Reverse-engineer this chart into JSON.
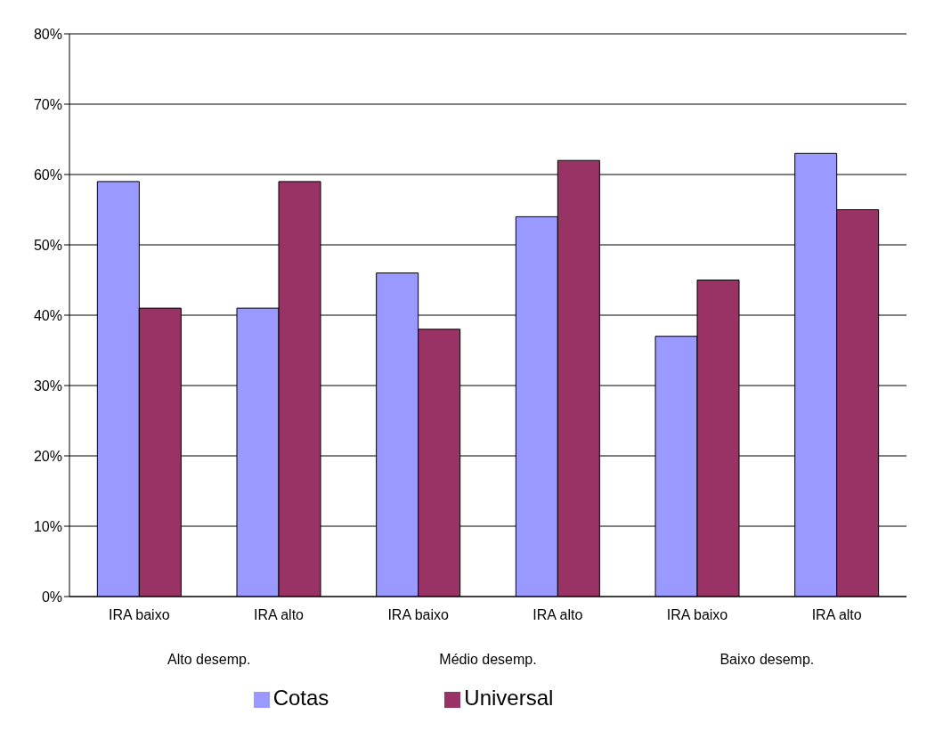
{
  "chart_data": {
    "type": "bar",
    "categories": [
      "IRA baixo",
      "IRA alto",
      "IRA baixo",
      "IRA alto",
      "IRA baixo",
      "IRA alto"
    ],
    "annotations": [
      "Alto desemp.",
      "Médio desemp.",
      "Baixo desemp."
    ],
    "series": [
      {
        "name": "Cotas",
        "color": "#9999ff",
        "values": [
          59,
          41,
          46,
          54,
          37,
          63
        ]
      },
      {
        "name": "Universal",
        "color": "#993366",
        "values": [
          41,
          59,
          38,
          62,
          45,
          55
        ]
      }
    ],
    "ylim": [
      0,
      80
    ],
    "yticks": [
      {
        "value": 0,
        "label": "0%"
      },
      {
        "value": 10,
        "label": "10%"
      },
      {
        "value": 20,
        "label": "20%"
      },
      {
        "value": 30,
        "label": "30%"
      },
      {
        "value": 40,
        "label": "40%"
      },
      {
        "value": 50,
        "label": "50%"
      },
      {
        "value": 60,
        "label": "60%"
      },
      {
        "value": 70,
        "label": "70%"
      },
      {
        "value": 80,
        "label": "80%"
      }
    ],
    "grid": "y",
    "legend": "bottom"
  }
}
